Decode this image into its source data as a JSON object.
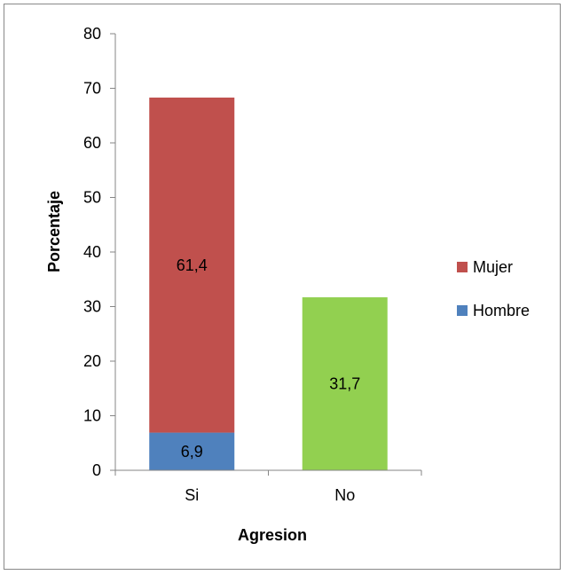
{
  "chart_data": {
    "type": "bar",
    "stacked": true,
    "categories": [
      "Si",
      "No"
    ],
    "series": [
      {
        "name": "Hombre",
        "values": [
          6.9,
          null
        ],
        "labels": [
          "6,9",
          ""
        ],
        "color": "#4f81bd"
      },
      {
        "name": "Mujer",
        "values": [
          61.4,
          null
        ],
        "labels": [
          "61,4",
          ""
        ],
        "color": "#c0504d"
      },
      {
        "name": "",
        "values": [
          null,
          31.7
        ],
        "labels": [
          "",
          "31,7"
        ],
        "color": "#92d050"
      }
    ],
    "title": "",
    "xlabel": "Agresion",
    "ylabel": "Porcentaje",
    "ylim": [
      0,
      80
    ],
    "yticks": [
      0,
      10,
      20,
      30,
      40,
      50,
      60,
      70,
      80
    ],
    "grid": false,
    "legend": {
      "placement": "right",
      "entries": [
        {
          "name": "Mujer",
          "color": "#c0504d"
        },
        {
          "name": "Hombre",
          "color": "#4f81bd"
        }
      ]
    }
  }
}
